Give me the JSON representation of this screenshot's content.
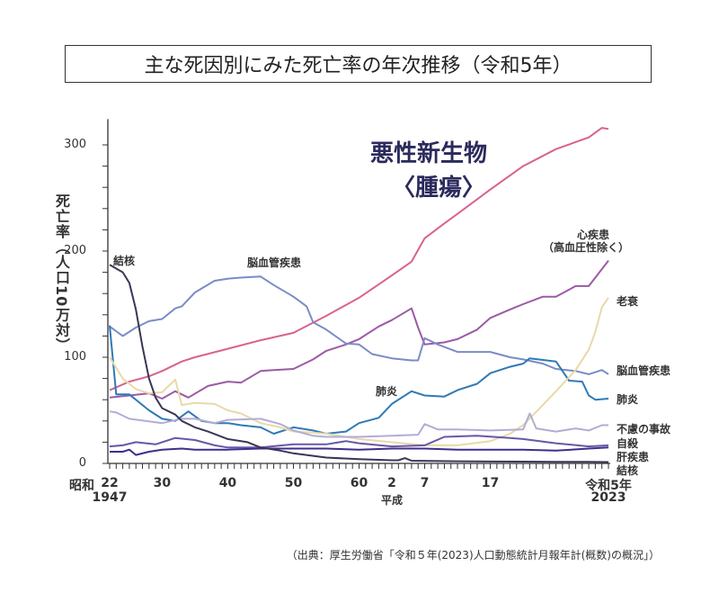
{
  "chart_data": {
    "type": "line",
    "title": "主な死因別にみた死亡率の年次推移（令和5年）",
    "ylabel": "死亡率（人口10万対）",
    "xlabel": "",
    "ylim": [
      0,
      320
    ],
    "xlim": [
      1947,
      2023
    ],
    "yticks": [
      "0",
      "100",
      "200",
      "300"
    ],
    "xticks": [
      {
        "year": 1947,
        "era": "昭和",
        "label": "22",
        "sub": "1947"
      },
      {
        "year": 1955,
        "label": "30"
      },
      {
        "year": 1965,
        "label": "40"
      },
      {
        "year": 1975,
        "label": "50"
      },
      {
        "year": 1985,
        "label": "60"
      },
      {
        "year": 1990,
        "label": "2",
        "sub": "平成"
      },
      {
        "year": 1995,
        "label": "7"
      },
      {
        "year": 2005,
        "label": "17"
      },
      {
        "year": 2023,
        "label": "令和5年",
        "sub": "2023"
      }
    ],
    "grid": false,
    "series": [
      {
        "name": "悪性新生物〈腫瘍〉",
        "color": "#d9628f",
        "points": [
          [
            1947,
            69
          ],
          [
            1950,
            77
          ],
          [
            1953,
            82
          ],
          [
            1955,
            87
          ],
          [
            1958,
            96
          ],
          [
            1960,
            100
          ],
          [
            1965,
            108
          ],
          [
            1970,
            116
          ],
          [
            1975,
            123
          ],
          [
            1980,
            139
          ],
          [
            1985,
            156
          ],
          [
            1990,
            177
          ],
          [
            1993,
            190
          ],
          [
            1995,
            212
          ],
          [
            1998,
            226
          ],
          [
            2000,
            235
          ],
          [
            2005,
            258
          ],
          [
            2010,
            280
          ],
          [
            2015,
            296
          ],
          [
            2020,
            307
          ],
          [
            2022,
            316
          ],
          [
            2023,
            315
          ]
        ]
      },
      {
        "name": "心疾患（高血圧性除く）",
        "color": "#9c5aa5",
        "points": [
          [
            1947,
            62
          ],
          [
            1950,
            64
          ],
          [
            1953,
            66
          ],
          [
            1955,
            61
          ],
          [
            1957,
            68
          ],
          [
            1959,
            62
          ],
          [
            1962,
            73
          ],
          [
            1965,
            77
          ],
          [
            1967,
            76
          ],
          [
            1970,
            87
          ],
          [
            1972,
            88
          ],
          [
            1975,
            89
          ],
          [
            1978,
            98
          ],
          [
            1980,
            106
          ],
          [
            1983,
            112
          ],
          [
            1985,
            117
          ],
          [
            1988,
            129
          ],
          [
            1990,
            135
          ],
          [
            1993,
            146
          ],
          [
            1994,
            128
          ],
          [
            1995,
            112
          ],
          [
            1998,
            114
          ],
          [
            2000,
            117
          ],
          [
            2003,
            126
          ],
          [
            2005,
            137
          ],
          [
            2008,
            145
          ],
          [
            2010,
            150
          ],
          [
            2013,
            157
          ],
          [
            2015,
            157
          ],
          [
            2018,
            167
          ],
          [
            2020,
            167
          ],
          [
            2021,
            175
          ],
          [
            2023,
            191
          ]
        ]
      },
      {
        "name": "脳血管疾患",
        "color": "#7b8cc4",
        "points": [
          [
            1947,
            129
          ],
          [
            1949,
            120
          ],
          [
            1951,
            128
          ],
          [
            1953,
            134
          ],
          [
            1955,
            136
          ],
          [
            1957,
            146
          ],
          [
            1958,
            148
          ],
          [
            1960,
            161
          ],
          [
            1963,
            172
          ],
          [
            1965,
            174
          ],
          [
            1967,
            175
          ],
          [
            1970,
            176
          ],
          [
            1972,
            168
          ],
          [
            1975,
            157
          ],
          [
            1977,
            148
          ],
          [
            1978,
            133
          ],
          [
            1980,
            126
          ],
          [
            1983,
            113
          ],
          [
            1985,
            112
          ],
          [
            1987,
            103
          ],
          [
            1990,
            99
          ],
          [
            1993,
            97
          ],
          [
            1994,
            97
          ],
          [
            1995,
            118
          ],
          [
            1997,
            112
          ],
          [
            2000,
            105
          ],
          [
            2005,
            105
          ],
          [
            2008,
            100
          ],
          [
            2010,
            98
          ],
          [
            2013,
            94
          ],
          [
            2015,
            89
          ],
          [
            2018,
            87
          ],
          [
            2020,
            84
          ],
          [
            2022,
            88
          ],
          [
            2023,
            84
          ]
        ]
      },
      {
        "name": "肺炎",
        "color": "#2f7ab5",
        "points": [
          [
            1947,
            130
          ],
          [
            1948,
            65
          ],
          [
            1950,
            65
          ],
          [
            1953,
            50
          ],
          [
            1955,
            42
          ],
          [
            1957,
            40
          ],
          [
            1959,
            49
          ],
          [
            1961,
            40
          ],
          [
            1963,
            38
          ],
          [
            1965,
            38
          ],
          [
            1967,
            36
          ],
          [
            1970,
            34
          ],
          [
            1972,
            28
          ],
          [
            1975,
            34
          ],
          [
            1978,
            31
          ],
          [
            1980,
            28
          ],
          [
            1983,
            30
          ],
          [
            1985,
            38
          ],
          [
            1988,
            43
          ],
          [
            1990,
            56
          ],
          [
            1993,
            68
          ],
          [
            1995,
            64
          ],
          [
            1998,
            63
          ],
          [
            2000,
            69
          ],
          [
            2003,
            75
          ],
          [
            2005,
            85
          ],
          [
            2008,
            91
          ],
          [
            2010,
            94
          ],
          [
            2011,
            99
          ],
          [
            2015,
            96
          ],
          [
            2017,
            78
          ],
          [
            2019,
            77
          ],
          [
            2020,
            64
          ],
          [
            2021,
            60
          ],
          [
            2023,
            61
          ]
        ]
      },
      {
        "name": "老衰",
        "color": "#e8d9a8",
        "points": [
          [
            1947,
            100
          ],
          [
            1949,
            80
          ],
          [
            1951,
            70
          ],
          [
            1953,
            66
          ],
          [
            1955,
            67
          ],
          [
            1957,
            79
          ],
          [
            1958,
            55
          ],
          [
            1960,
            57
          ],
          [
            1963,
            56
          ],
          [
            1965,
            50
          ],
          [
            1967,
            47
          ],
          [
            1970,
            38
          ],
          [
            1973,
            34
          ],
          [
            1975,
            30
          ],
          [
            1978,
            29
          ],
          [
            1980,
            28
          ],
          [
            1985,
            23
          ],
          [
            1990,
            20
          ],
          [
            1995,
            17
          ],
          [
            2000,
            17
          ],
          [
            2005,
            21
          ],
          [
            2008,
            28
          ],
          [
            2010,
            36
          ],
          [
            2013,
            55
          ],
          [
            2015,
            68
          ],
          [
            2018,
            88
          ],
          [
            2020,
            107
          ],
          [
            2021,
            124
          ],
          [
            2022,
            147
          ],
          [
            2023,
            156
          ]
        ]
      },
      {
        "name": "不慮の事故",
        "color": "#b3acd6",
        "points": [
          [
            1947,
            49
          ],
          [
            1948,
            48
          ],
          [
            1950,
            42
          ],
          [
            1955,
            38
          ],
          [
            1958,
            42
          ],
          [
            1960,
            42
          ],
          [
            1963,
            38
          ],
          [
            1965,
            41
          ],
          [
            1970,
            42
          ],
          [
            1973,
            37
          ],
          [
            1975,
            31
          ],
          [
            1978,
            26
          ],
          [
            1980,
            25
          ],
          [
            1985,
            25
          ],
          [
            1990,
            26
          ],
          [
            1994,
            27
          ],
          [
            1995,
            37
          ],
          [
            1997,
            32
          ],
          [
            2000,
            32
          ],
          [
            2005,
            31
          ],
          [
            2010,
            32
          ],
          [
            2011,
            47
          ],
          [
            2012,
            33
          ],
          [
            2015,
            30
          ],
          [
            2018,
            33
          ],
          [
            2020,
            31
          ],
          [
            2022,
            36
          ],
          [
            2023,
            36
          ]
        ]
      },
      {
        "name": "自殺",
        "color": "#6a56a8",
        "points": [
          [
            1947,
            16
          ],
          [
            1949,
            17
          ],
          [
            1951,
            20
          ],
          [
            1954,
            18
          ],
          [
            1957,
            24
          ],
          [
            1960,
            22
          ],
          [
            1963,
            17
          ],
          [
            1965,
            15
          ],
          [
            1970,
            15
          ],
          [
            1975,
            18
          ],
          [
            1980,
            18
          ],
          [
            1983,
            21
          ],
          [
            1985,
            19
          ],
          [
            1990,
            16
          ],
          [
            1995,
            17
          ],
          [
            1998,
            25
          ],
          [
            2003,
            26
          ],
          [
            2008,
            24
          ],
          [
            2010,
            23
          ],
          [
            2015,
            19
          ],
          [
            2020,
            16
          ],
          [
            2023,
            17
          ]
        ]
      },
      {
        "name": "肝疾患",
        "color": "#3d2f8a",
        "points": [
          [
            1947,
            11
          ],
          [
            1949,
            11
          ],
          [
            1950,
            13
          ],
          [
            1951,
            8
          ],
          [
            1953,
            11
          ],
          [
            1955,
            13
          ],
          [
            1958,
            14
          ],
          [
            1960,
            13
          ],
          [
            1965,
            13
          ],
          [
            1970,
            14
          ],
          [
            1975,
            14
          ],
          [
            1980,
            14
          ],
          [
            1985,
            13
          ],
          [
            1990,
            14
          ],
          [
            1995,
            14
          ],
          [
            2000,
            13
          ],
          [
            2005,
            13
          ],
          [
            2010,
            13
          ],
          [
            2015,
            12
          ],
          [
            2020,
            14
          ],
          [
            2023,
            15
          ]
        ]
      },
      {
        "name": "結核",
        "color": "#3a3656",
        "points": [
          [
            1947,
            187
          ],
          [
            1949,
            180
          ],
          [
            1950,
            170
          ],
          [
            1951,
            145
          ],
          [
            1952,
            110
          ],
          [
            1953,
            80
          ],
          [
            1954,
            62
          ],
          [
            1955,
            52
          ],
          [
            1957,
            46
          ],
          [
            1958,
            40
          ],
          [
            1960,
            34
          ],
          [
            1962,
            30
          ],
          [
            1965,
            23
          ],
          [
            1968,
            20
          ],
          [
            1970,
            15
          ],
          [
            1973,
            12
          ],
          [
            1975,
            9.5
          ],
          [
            1980,
            5.5
          ],
          [
            1985,
            4
          ],
          [
            1990,
            3
          ],
          [
            1991,
            3
          ],
          [
            1992,
            5
          ],
          [
            1993,
            2.5
          ],
          [
            2000,
            2
          ],
          [
            2005,
            1.8
          ],
          [
            2010,
            1.7
          ],
          [
            2015,
            1.5
          ],
          [
            2020,
            1.4
          ],
          [
            2023,
            1.3
          ]
        ]
      }
    ]
  },
  "labels": {
    "tb": "結核",
    "cerebro": "脳血管疾患",
    "pneumonia": "肺炎",
    "heart1": "心疾患",
    "heart2": "（高血圧性除く）",
    "cancer1": "悪性新生物",
    "cancer2": "〈腫瘍〉",
    "r_senility": "老衰",
    "r_cerebro": "脳血管疾患",
    "r_pneumonia": "肺炎",
    "r_accident": "不慮の事故",
    "r_suicide": "自殺",
    "r_liver": "肝疾患",
    "r_tb": "結核"
  },
  "source": "（出典：厚生労働省「令和５年(2023)人口動態統計月報年計(概数)の概況」）"
}
